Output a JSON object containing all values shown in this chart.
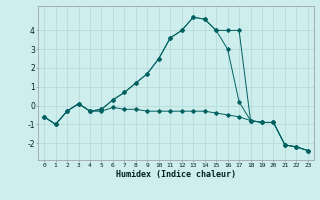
{
  "background_color": "#ceeeed",
  "grid_color": "#b8dada",
  "line_color": "#006060",
  "xlabel": "Humidex (Indice chaleur)",
  "xlim": [
    -0.5,
    23.5
  ],
  "ylim": [
    -2.9,
    5.3
  ],
  "yticks": [
    -2,
    -1,
    0,
    1,
    2,
    3,
    4
  ],
  "xticks": [
    0,
    1,
    2,
    3,
    4,
    5,
    6,
    7,
    8,
    9,
    10,
    11,
    12,
    13,
    14,
    15,
    16,
    17,
    18,
    19,
    20,
    21,
    22,
    23
  ],
  "series": [
    {
      "x": [
        0,
        1,
        2,
        3,
        4,
        5,
        6,
        7,
        8,
        9,
        10,
        11,
        12,
        13,
        14,
        15,
        16,
        17,
        18,
        19,
        20,
        21,
        22,
        23
      ],
      "y": [
        -0.6,
        -1.0,
        -0.3,
        0.1,
        -0.3,
        -0.3,
        -0.1,
        -0.2,
        -0.2,
        -0.3,
        -0.3,
        -0.3,
        -0.3,
        -0.3,
        -0.3,
        -0.4,
        -0.5,
        -0.6,
        -0.8,
        -0.9,
        -0.9,
        -2.1,
        -2.2,
        -2.4
      ]
    },
    {
      "x": [
        0,
        1,
        2,
        3,
        4,
        5,
        6,
        7,
        8,
        9,
        10,
        11,
        12,
        13,
        14,
        15,
        16,
        17,
        18,
        19,
        20,
        21,
        22,
        23
      ],
      "y": [
        -0.6,
        -1.0,
        -0.3,
        0.1,
        -0.3,
        -0.2,
        0.3,
        0.7,
        1.2,
        1.7,
        2.5,
        3.6,
        4.0,
        4.7,
        4.6,
        4.0,
        3.0,
        0.2,
        -0.8,
        -0.9,
        -0.9,
        -2.1,
        -2.2,
        -2.4
      ]
    },
    {
      "x": [
        0,
        1,
        2,
        3,
        4,
        5,
        6,
        7,
        8,
        9,
        10,
        11,
        12,
        13,
        14,
        15,
        16,
        17,
        18,
        19,
        20,
        21,
        22,
        23
      ],
      "y": [
        -0.6,
        -1.0,
        -0.3,
        0.1,
        -0.3,
        -0.2,
        0.3,
        0.7,
        1.2,
        1.7,
        2.5,
        3.6,
        4.0,
        4.7,
        4.6,
        4.0,
        4.0,
        4.0,
        -0.8,
        -0.9,
        -0.9,
        -2.1,
        -2.2,
        -2.4
      ]
    }
  ]
}
